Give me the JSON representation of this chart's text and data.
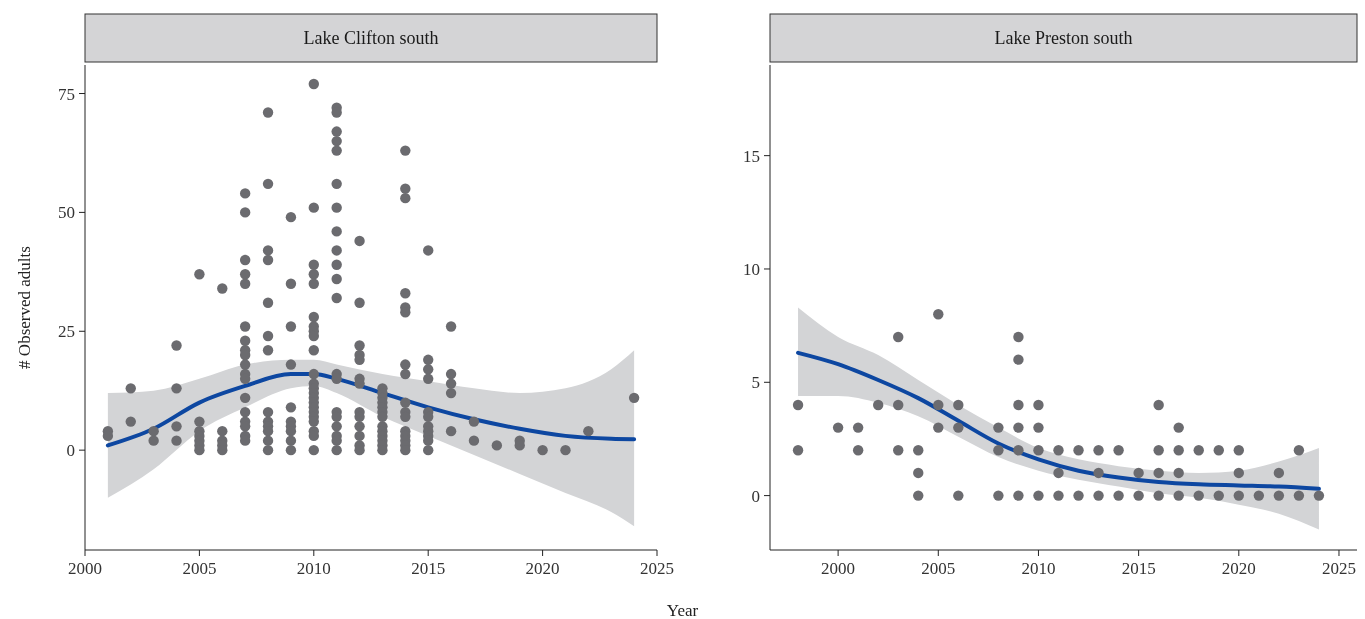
{
  "chart_data": [
    {
      "type": "scatter",
      "title": "Lake Clifton south",
      "xlabel": "Year",
      "ylabel": "# Observed adults",
      "xlim": [
        2000,
        2025
      ],
      "ylim": [
        -21,
        81
      ],
      "xticks": [
        2000,
        2005,
        2010,
        2015,
        2020,
        2025
      ],
      "yticks": [
        0,
        25,
        50,
        75
      ],
      "grid": false,
      "series": [
        {
          "marker": "circle",
          "color": "#6b6b6f",
          "x": [
            2001,
            2001,
            2002,
            2002,
            2003,
            2003,
            2004,
            2004,
            2004,
            2004,
            2005,
            2005,
            2005,
            2005,
            2005,
            2005,
            2005,
            2006,
            2006,
            2006,
            2006,
            2006,
            2007,
            2007,
            2007,
            2007,
            2007,
            2007,
            2007,
            2007,
            2007,
            2007,
            2007,
            2007,
            2007,
            2007,
            2007,
            2007,
            2007,
            2007,
            2008,
            2008,
            2008,
            2008,
            2008,
            2008,
            2008,
            2008,
            2008,
            2008,
            2008,
            2008,
            2008,
            2009,
            2009,
            2009,
            2009,
            2009,
            2009,
            2009,
            2009,
            2009,
            2009,
            2010,
            2010,
            2010,
            2010,
            2010,
            2010,
            2010,
            2010,
            2010,
            2010,
            2010,
            2010,
            2010,
            2010,
            2010,
            2010,
            2010,
            2010,
            2010,
            2010,
            2010,
            2010,
            2010,
            2011,
            2011,
            2011,
            2011,
            2011,
            2011,
            2011,
            2011,
            2011,
            2011,
            2011,
            2011,
            2011,
            2011,
            2011,
            2011,
            2011,
            2011,
            2011,
            2011,
            2012,
            2012,
            2012,
            2012,
            2012,
            2012,
            2012,
            2012,
            2012,
            2012,
            2012,
            2012,
            2012,
            2013,
            2013,
            2013,
            2013,
            2013,
            2013,
            2013,
            2013,
            2013,
            2013,
            2013,
            2013,
            2013,
            2014,
            2014,
            2014,
            2014,
            2014,
            2014,
            2014,
            2014,
            2014,
            2014,
            2014,
            2014,
            2014,
            2014,
            2014,
            2014,
            2015,
            2015,
            2015,
            2015,
            2015,
            2015,
            2015,
            2015,
            2015,
            2015,
            2015,
            2016,
            2016,
            2016,
            2016,
            2016,
            2017,
            2017,
            2018,
            2019,
            2019,
            2020,
            2021,
            2022,
            2024
          ],
          "values": [
            4,
            3,
            13,
            6,
            4,
            2,
            22,
            13,
            5,
            2,
            37,
            6,
            4,
            3,
            2,
            1,
            0,
            34,
            4,
            2,
            1,
            0,
            54,
            50,
            40,
            37,
            35,
            26,
            23,
            21,
            20,
            18,
            16,
            15,
            11,
            8,
            6,
            5,
            3,
            2,
            71,
            56,
            42,
            40,
            31,
            24,
            21,
            8,
            6,
            5,
            4,
            2,
            0,
            49,
            35,
            26,
            18,
            9,
            6,
            5,
            4,
            2,
            0,
            77,
            51,
            39,
            37,
            35,
            28,
            26,
            25,
            24,
            21,
            16,
            14,
            13,
            12,
            11,
            10,
            9,
            8,
            7,
            6,
            4,
            3,
            0,
            72,
            71,
            67,
            65,
            63,
            56,
            51,
            46,
            42,
            39,
            36,
            32,
            16,
            15,
            8,
            7,
            5,
            3,
            2,
            0,
            44,
            31,
            22,
            20,
            19,
            15,
            14,
            8,
            7,
            5,
            3,
            1,
            0,
            13,
            12,
            11,
            10,
            9,
            8,
            7,
            5,
            4,
            3,
            2,
            1,
            0,
            63,
            55,
            53,
            33,
            30,
            29,
            18,
            16,
            10,
            8,
            7,
            4,
            3,
            2,
            1,
            0,
            42,
            19,
            17,
            15,
            8,
            7,
            5,
            4,
            3,
            2,
            0,
            26,
            16,
            14,
            12,
            4,
            6,
            2,
            1,
            2,
            1,
            0,
            0,
            4,
            11
          ]
        },
        {
          "type": "line",
          "color": "#0d47a1",
          "x": [
            2001,
            2003,
            2005,
            2007,
            2009,
            2010,
            2011,
            2013,
            2015,
            2017,
            2019,
            2021,
            2023,
            2024
          ],
          "values": [
            1,
            4.5,
            10,
            13.5,
            16,
            16,
            15,
            12,
            9,
            6.5,
            4.5,
            3,
            2.4,
            2.3
          ],
          "lower": [
            -10,
            -4,
            4,
            9,
            13,
            13.5,
            12,
            7,
            3,
            -1,
            -5,
            -9,
            -13,
            -16
          ],
          "upper": [
            12,
            12.5,
            15,
            18,
            19,
            19,
            18,
            16,
            14.5,
            13,
            12,
            13,
            17,
            21
          ]
        }
      ]
    },
    {
      "type": "scatter",
      "title": "Lake Preston south",
      "xlim": [
        1996.6,
        2025.9
      ],
      "ylim": [
        -2.4,
        19
      ],
      "xticks": [
        2000,
        2005,
        2010,
        2015,
        2020,
        2025
      ],
      "yticks": [
        0,
        5,
        10,
        15
      ],
      "grid": false,
      "series": [
        {
          "marker": "circle",
          "color": "#6b6b6f",
          "x": [
            1998,
            1998,
            2000,
            2001,
            2001,
            2002,
            2003,
            2003,
            2003,
            2004,
            2004,
            2004,
            2005,
            2005,
            2005,
            2006,
            2006,
            2006,
            2008,
            2008,
            2008,
            2009,
            2009,
            2009,
            2009,
            2009,
            2009,
            2010,
            2010,
            2010,
            2010,
            2011,
            2011,
            2011,
            2012,
            2012,
            2013,
            2013,
            2013,
            2014,
            2014,
            2015,
            2015,
            2016,
            2016,
            2016,
            2016,
            2017,
            2017,
            2017,
            2017,
            2018,
            2018,
            2019,
            2019,
            2020,
            2020,
            2020,
            2021,
            2022,
            2022,
            2023,
            2023,
            2024
          ],
          "values": [
            4,
            2,
            3,
            3,
            2,
            4,
            7,
            4,
            2,
            2,
            1,
            0,
            8,
            4,
            3,
            4,
            3,
            0,
            3,
            2,
            0,
            7,
            6,
            4,
            3,
            2,
            0,
            4,
            3,
            2,
            0,
            2,
            1,
            0,
            2,
            0,
            2,
            1,
            0,
            2,
            0,
            1,
            0,
            4,
            2,
            1,
            0,
            3,
            2,
            1,
            0,
            2,
            0,
            2,
            0,
            2,
            1,
            0,
            0,
            1,
            0,
            2,
            0,
            0
          ]
        },
        {
          "type": "line",
          "color": "#0d47a1",
          "x": [
            1998,
            2000,
            2002,
            2004,
            2006,
            2008,
            2010,
            2012,
            2014,
            2016,
            2018,
            2020,
            2022,
            2024
          ],
          "values": [
            6.3,
            5.8,
            5.1,
            4.3,
            3.3,
            2.3,
            1.6,
            1.1,
            0.8,
            0.6,
            0.5,
            0.45,
            0.4,
            0.3
          ],
          "lower": [
            4.4,
            4.4,
            4.1,
            3.5,
            2.6,
            1.7,
            1.1,
            0.7,
            0.4,
            0.1,
            -0.1,
            -0.4,
            -0.8,
            -1.5
          ],
          "upper": [
            8.3,
            7.0,
            6.2,
            5.1,
            4.0,
            3.0,
            2.1,
            1.6,
            1.3,
            1.1,
            1.0,
            1.1,
            1.5,
            2.1
          ]
        }
      ]
    }
  ]
}
